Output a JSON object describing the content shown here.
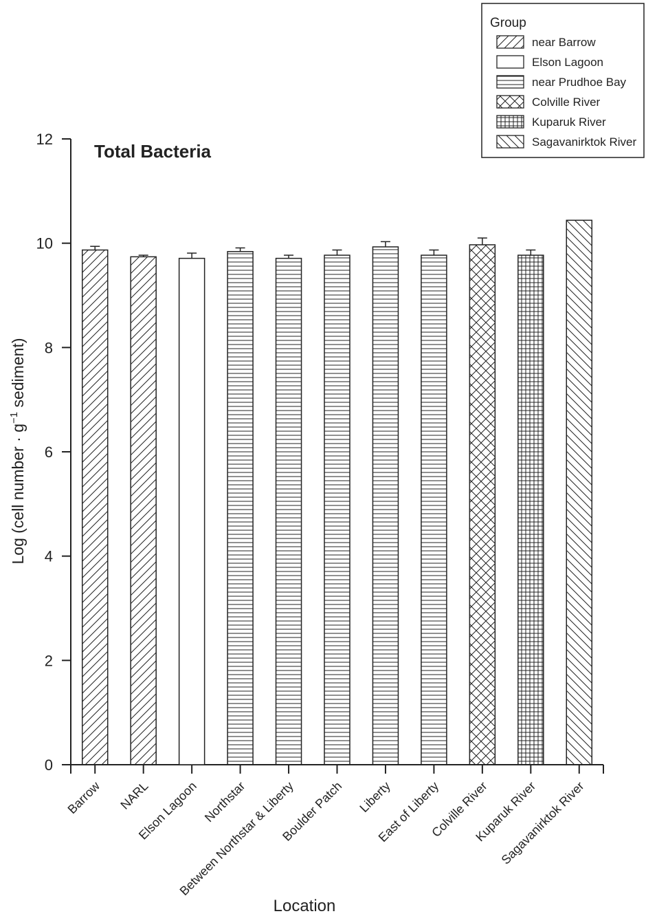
{
  "chart_data": {
    "type": "bar",
    "title": "Total Bacteria",
    "xlabel": "Location",
    "ylabel": {
      "main": "Log  (cell number · g",
      "sup": "−1",
      "end": " sediment)"
    },
    "ylim": [
      0,
      12
    ],
    "yticks": [
      "0",
      "2",
      "4",
      "6",
      "8",
      "10",
      "12"
    ],
    "grid": false,
    "legend": {
      "title": "Group",
      "placement": "top-right",
      "entries": [
        {
          "name": "near Barrow",
          "pattern": "diag-up"
        },
        {
          "name": "Elson Lagoon",
          "pattern": "none"
        },
        {
          "name": "near Prudhoe Bay",
          "pattern": "horizontal"
        },
        {
          "name": "Colville River",
          "pattern": "crosshatch"
        },
        {
          "name": "Kuparuk River",
          "pattern": "grid"
        },
        {
          "name": "Sagavanirktok River",
          "pattern": "diag-down"
        }
      ]
    },
    "categories": [
      "Barrow",
      "NARL",
      "Elson Lagoon",
      "Northstar",
      "Between Northstar & Liberty",
      "Boulder Patch",
      "Liberty",
      "East of Liberty",
      "Colville River",
      "Kuparuk River",
      "Sagavanirktok River"
    ],
    "values": [
      9.87,
      9.74,
      9.71,
      9.84,
      9.71,
      9.77,
      9.93,
      9.77,
      9.97,
      9.77,
      10.44
    ],
    "errors": [
      0.07,
      0.03,
      0.1,
      0.07,
      0.06,
      0.1,
      0.1,
      0.1,
      0.13,
      0.1,
      0.0
    ],
    "groups": [
      "near Barrow",
      "near Barrow",
      "Elson Lagoon",
      "near Prudhoe Bay",
      "near Prudhoe Bay",
      "near Prudhoe Bay",
      "near Prudhoe Bay",
      "near Prudhoe Bay",
      "Colville River",
      "Kuparuk River",
      "Sagavanirktok River"
    ]
  }
}
